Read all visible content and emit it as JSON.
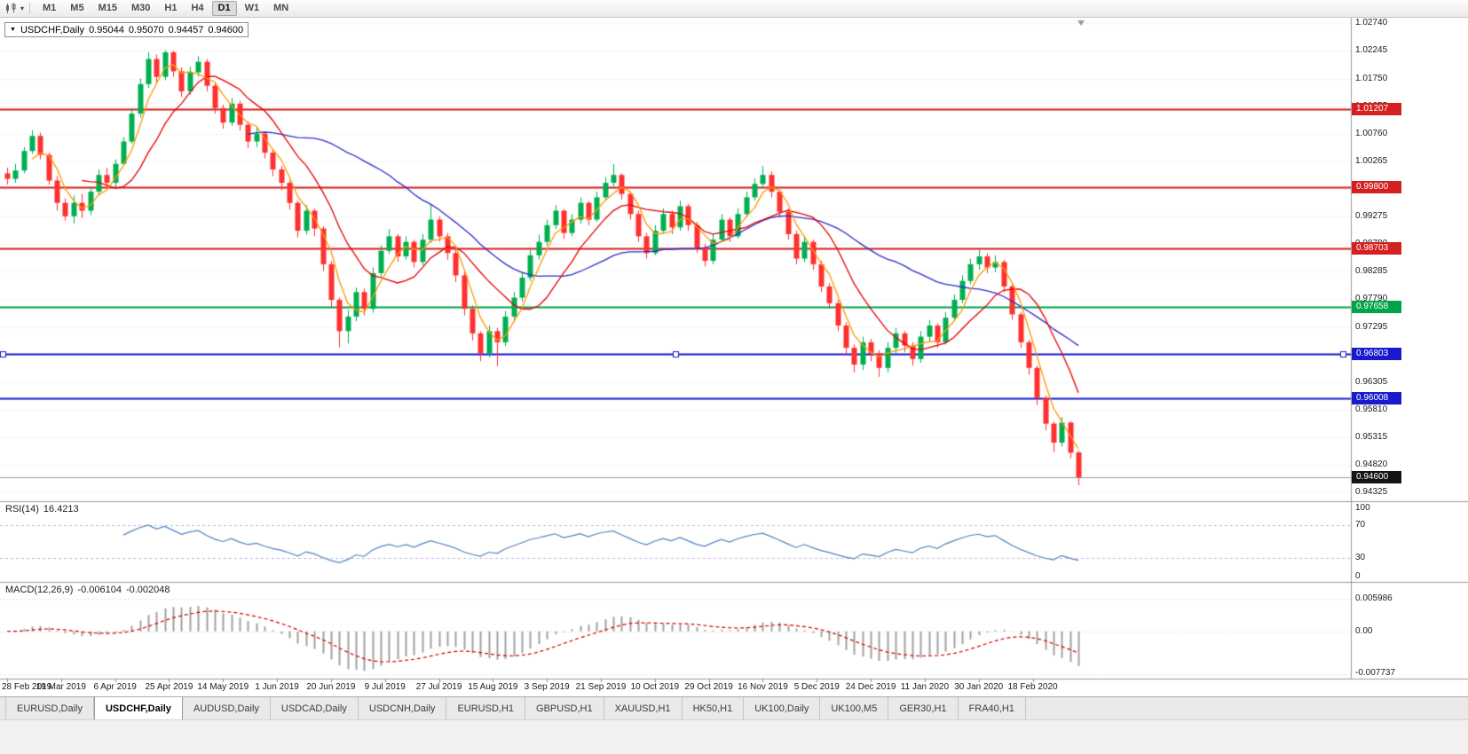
{
  "toolbar": {
    "timeframes": [
      "M1",
      "M5",
      "M15",
      "M30",
      "H1",
      "H4",
      "D1",
      "W1",
      "MN"
    ],
    "active_timeframe": "D1"
  },
  "chart_title": {
    "symbol_period": "USDCHF,Daily",
    "open": "0.95044",
    "high": "0.95070",
    "low": "0.94457",
    "close": "0.94600"
  },
  "price_axis": {
    "ticks": [
      "1.02740",
      "1.02245",
      "1.01750",
      "1.01255",
      "1.00760",
      "1.00265",
      "0.99770",
      "0.99275",
      "0.98780",
      "0.98285",
      "0.97790",
      "0.97295",
      "0.96800",
      "0.96305",
      "0.95810",
      "0.95315",
      "0.94820",
      "0.94325"
    ]
  },
  "levels": [
    {
      "price": 1.01207,
      "label": "1.01207",
      "color": "#d42020",
      "width": 2
    },
    {
      "price": 0.998,
      "label": "0.99800",
      "color": "#d42020",
      "width": 2
    },
    {
      "price": 0.98703,
      "label": "0.98703",
      "color": "#d42020",
      "width": 2
    },
    {
      "price": 0.97658,
      "label": "0.97658",
      "color": "#00a44a",
      "width": 2
    },
    {
      "price": 0.96803,
      "label": "0.96803",
      "color": "#1a1acc",
      "width": 2,
      "selected": true
    },
    {
      "price": 0.96008,
      "label": "0.96008",
      "color": "#1a1acc",
      "width": 2
    }
  ],
  "current_price": {
    "label": "0.94600",
    "price": 0.946,
    "badge_color": "#141414",
    "line_color": "#9a9a9a"
  },
  "style": {
    "up": "#00b050",
    "down": "#ff3030",
    "grid": "#e4e4e4",
    "panel_border": "#9a9a9a",
    "axis_text": "#1c1c1c"
  },
  "chart_data": {
    "type": "candlestick",
    "symbol": "USDCHF",
    "timeframe": "Daily",
    "y_range": [
      0.9417,
      1.0284
    ],
    "x_labels": [
      "28 Feb 2019",
      "19 Mar 2019",
      "6 Apr 2019",
      "25 Apr 2019",
      "14 May 2019",
      "1 Jun 2019",
      "20 Jun 2019",
      "9 Jul 2019",
      "27 Jul 2019",
      "15 Aug 2019",
      "3 Sep 2019",
      "21 Sep 2019",
      "10 Oct 2019",
      "29 Oct 2019",
      "16 Nov 2019",
      "5 Dec 2019",
      "24 Dec 2019",
      "11 Jan 2020",
      "30 Jan 2020",
      "18 Feb 2020"
    ],
    "ohlc": [
      [
        1.0005,
        1.0015,
        0.9985,
        0.9995
      ],
      [
        0.9995,
        1.0022,
        0.9988,
        1.001
      ],
      [
        1.001,
        1.0052,
        1.0005,
        1.0045
      ],
      [
        1.0045,
        1.0082,
        1.004,
        1.0072
      ],
      [
        1.0072,
        1.0078,
        1.003,
        1.0038
      ],
      [
        1.0038,
        1.0042,
        0.9985,
        0.9992
      ],
      [
        0.9992,
        1.0,
        0.9938,
        0.9952
      ],
      [
        0.9952,
        0.996,
        0.992,
        0.9928
      ],
      [
        0.9928,
        0.9965,
        0.9915,
        0.9952
      ],
      [
        0.9952,
        0.9968,
        0.9925,
        0.9938
      ],
      [
        0.9938,
        0.998,
        0.993,
        0.9972
      ],
      [
        0.9972,
        1.0012,
        0.9965,
        1.0002
      ],
      [
        1.0002,
        1.0015,
        0.9975,
        0.9988
      ],
      [
        0.9988,
        1.003,
        0.998,
        1.0022
      ],
      [
        1.0022,
        1.007,
        1.0018,
        1.0062
      ],
      [
        1.0062,
        1.0122,
        1.0058,
        1.0112
      ],
      [
        1.0112,
        1.0175,
        1.0105,
        1.0165
      ],
      [
        1.0165,
        1.0222,
        1.0158,
        1.021
      ],
      [
        1.021,
        1.0218,
        1.0165,
        1.0178
      ],
      [
        1.0178,
        1.0226,
        1.0172,
        1.0222
      ],
      [
        1.0222,
        1.0225,
        1.0178,
        1.0188
      ],
      [
        1.0188,
        1.0195,
        1.0142,
        1.0152
      ],
      [
        1.0152,
        1.0196,
        1.0146,
        1.0186
      ],
      [
        1.0186,
        1.0215,
        1.0178,
        1.0205
      ],
      [
        1.0205,
        1.021,
        1.0152,
        1.0162
      ],
      [
        1.0162,
        1.0168,
        1.0112,
        1.0122
      ],
      [
        1.0122,
        1.0128,
        1.0085,
        1.0096
      ],
      [
        1.0096,
        1.014,
        1.009,
        1.013
      ],
      [
        1.013,
        1.0135,
        1.0082,
        1.0092
      ],
      [
        1.0092,
        1.0098,
        1.005,
        1.0062
      ],
      [
        1.0062,
        1.0088,
        1.0052,
        1.0076
      ],
      [
        1.0076,
        1.008,
        1.0032,
        1.0042
      ],
      [
        1.0042,
        1.0048,
        1.0,
        1.0012
      ],
      [
        1.0012,
        1.0018,
        0.9975,
        0.9988
      ],
      [
        0.9988,
        0.9992,
        0.994,
        0.9952
      ],
      [
        0.9952,
        0.9955,
        0.989,
        0.9902
      ],
      [
        0.9902,
        0.9948,
        0.9895,
        0.9938
      ],
      [
        0.9938,
        0.9942,
        0.9892,
        0.9906
      ],
      [
        0.9906,
        0.991,
        0.983,
        0.9842
      ],
      [
        0.9842,
        0.9848,
        0.9765,
        0.9778
      ],
      [
        0.9778,
        0.9782,
        0.9693,
        0.9722
      ],
      [
        0.9722,
        0.976,
        0.97,
        0.9748
      ],
      [
        0.9748,
        0.98,
        0.974,
        0.9792
      ],
      [
        0.9792,
        0.9798,
        0.975,
        0.9762
      ],
      [
        0.9762,
        0.9836,
        0.9755,
        0.9826
      ],
      [
        0.9826,
        0.9876,
        0.982,
        0.9866
      ],
      [
        0.9866,
        0.9905,
        0.986,
        0.9892
      ],
      [
        0.9892,
        0.9896,
        0.9846,
        0.9856
      ],
      [
        0.9856,
        0.9892,
        0.985,
        0.9882
      ],
      [
        0.9882,
        0.9886,
        0.9836,
        0.9846
      ],
      [
        0.9846,
        0.9896,
        0.984,
        0.9886
      ],
      [
        0.9886,
        0.995,
        0.988,
        0.9922
      ],
      [
        0.9922,
        0.9928,
        0.9882,
        0.9892
      ],
      [
        0.9892,
        0.9898,
        0.985,
        0.9862
      ],
      [
        0.9862,
        0.9868,
        0.981,
        0.9822
      ],
      [
        0.9822,
        0.9828,
        0.975,
        0.9762
      ],
      [
        0.9762,
        0.9768,
        0.9705,
        0.9718
      ],
      [
        0.9718,
        0.9722,
        0.9668,
        0.9682
      ],
      [
        0.9682,
        0.9732,
        0.9675,
        0.9722
      ],
      [
        0.9722,
        0.9728,
        0.9659,
        0.9702
      ],
      [
        0.9702,
        0.9758,
        0.9695,
        0.9748
      ],
      [
        0.9748,
        0.9792,
        0.974,
        0.9782
      ],
      [
        0.9782,
        0.9828,
        0.9775,
        0.9818
      ],
      [
        0.9818,
        0.9868,
        0.9812,
        0.9858
      ],
      [
        0.9858,
        0.9895,
        0.985,
        0.9882
      ],
      [
        0.9882,
        0.9922,
        0.9875,
        0.9912
      ],
      [
        0.9912,
        0.9948,
        0.9905,
        0.9938
      ],
      [
        0.9938,
        0.994,
        0.9888,
        0.9898
      ],
      [
        0.9898,
        0.9932,
        0.9892,
        0.9922
      ],
      [
        0.9922,
        0.9962,
        0.9915,
        0.9952
      ],
      [
        0.9952,
        0.9955,
        0.9912,
        0.9922
      ],
      [
        0.9922,
        0.9972,
        0.9918,
        0.9962
      ],
      [
        0.9962,
        0.9998,
        0.9958,
        0.9988
      ],
      [
        0.9988,
        1.0022,
        0.9982,
        1.0002
      ],
      [
        1.0002,
        1.0005,
        0.9958,
        0.9968
      ],
      [
        0.9968,
        0.9972,
        0.9922,
        0.9932
      ],
      [
        0.9932,
        0.9938,
        0.9882,
        0.9892
      ],
      [
        0.9892,
        0.9898,
        0.9852,
        0.9862
      ],
      [
        0.9862,
        0.9912,
        0.9858,
        0.9902
      ],
      [
        0.9902,
        0.9942,
        0.9898,
        0.9932
      ],
      [
        0.9932,
        0.9938,
        0.9896,
        0.9908
      ],
      [
        0.9908,
        0.9956,
        0.9902,
        0.9946
      ],
      [
        0.9946,
        0.995,
        0.9902,
        0.9912
      ],
      [
        0.9912,
        0.9918,
        0.9862,
        0.9872
      ],
      [
        0.9872,
        0.9878,
        0.9838,
        0.9848
      ],
      [
        0.9848,
        0.9896,
        0.9842,
        0.9886
      ],
      [
        0.9886,
        0.9932,
        0.9882,
        0.9922
      ],
      [
        0.9922,
        0.9926,
        0.9882,
        0.9892
      ],
      [
        0.9892,
        0.9942,
        0.9888,
        0.9932
      ],
      [
        0.9932,
        0.9972,
        0.9926,
        0.9962
      ],
      [
        0.9962,
        0.9996,
        0.9956,
        0.9986
      ],
      [
        0.9986,
        1.0018,
        0.9982,
        1.0002
      ],
      [
        1.0002,
        1.0008,
        0.9962,
        0.9972
      ],
      [
        0.9972,
        0.9976,
        0.9926,
        0.9936
      ],
      [
        0.9936,
        0.9942,
        0.9886,
        0.9896
      ],
      [
        0.9896,
        0.9902,
        0.9842,
        0.9852
      ],
      [
        0.9852,
        0.9892,
        0.9846,
        0.9882
      ],
      [
        0.9882,
        0.9886,
        0.9832,
        0.9842
      ],
      [
        0.9842,
        0.9848,
        0.9792,
        0.9802
      ],
      [
        0.9802,
        0.9808,
        0.9762,
        0.9772
      ],
      [
        0.9772,
        0.9778,
        0.9722,
        0.9732
      ],
      [
        0.9732,
        0.9738,
        0.968,
        0.9692
      ],
      [
        0.9692,
        0.9698,
        0.9648,
        0.9662
      ],
      [
        0.9662,
        0.9712,
        0.9652,
        0.9702
      ],
      [
        0.9702,
        0.9708,
        0.9668,
        0.9682
      ],
      [
        0.9682,
        0.9688,
        0.964,
        0.9656
      ],
      [
        0.9656,
        0.9702,
        0.9648,
        0.9692
      ],
      [
        0.9692,
        0.9728,
        0.9682,
        0.9718
      ],
      [
        0.9718,
        0.9722,
        0.9684,
        0.9696
      ],
      [
        0.9696,
        0.9702,
        0.966,
        0.9672
      ],
      [
        0.9672,
        0.9722,
        0.9665,
        0.9712
      ],
      [
        0.9712,
        0.9742,
        0.9702,
        0.9732
      ],
      [
        0.9732,
        0.9736,
        0.9692,
        0.9702
      ],
      [
        0.9702,
        0.9756,
        0.9698,
        0.9746
      ],
      [
        0.9746,
        0.9788,
        0.974,
        0.9778
      ],
      [
        0.9778,
        0.9822,
        0.9772,
        0.9812
      ],
      [
        0.9812,
        0.9852,
        0.9806,
        0.9842
      ],
      [
        0.9842,
        0.9868,
        0.9832,
        0.9856
      ],
      [
        0.9856,
        0.9862,
        0.9826,
        0.9836
      ],
      [
        0.9836,
        0.9858,
        0.9828,
        0.9846
      ],
      [
        0.9846,
        0.985,
        0.9792,
        0.9802
      ],
      [
        0.9802,
        0.9806,
        0.9742,
        0.9752
      ],
      [
        0.9752,
        0.9756,
        0.9692,
        0.9702
      ],
      [
        0.9702,
        0.9706,
        0.9644,
        0.9656
      ],
      [
        0.9656,
        0.966,
        0.959,
        0.9602
      ],
      [
        0.9602,
        0.9606,
        0.9544,
        0.9556
      ],
      [
        0.9556,
        0.956,
        0.9505,
        0.9522
      ],
      [
        0.9522,
        0.9568,
        0.9515,
        0.9558
      ],
      [
        0.9558,
        0.956,
        0.9494,
        0.9504
      ],
      [
        0.95044,
        0.9507,
        0.94457,
        0.946
      ]
    ],
    "moving_averages": [
      {
        "name": "slow",
        "period": 30,
        "color": "#2d2dcf"
      },
      {
        "name": "mid",
        "period": 10,
        "color": "#e60000"
      },
      {
        "name": "fast",
        "period": 4,
        "color": "#ff9800"
      }
    ],
    "indicators": [
      {
        "name": "RSI",
        "label": "RSI(14)",
        "value": "16.4213",
        "axis": [
          "100",
          "70",
          "30",
          "0"
        ],
        "guides": [
          70,
          30
        ],
        "color": "#4f86c0"
      },
      {
        "name": "MACD",
        "label": "MACD(12,26,9)",
        "value": "-0.006104",
        "value2": "-0.002048",
        "axis": [
          "0.005986",
          "0.00",
          "-0.007737"
        ],
        "hist_color": "#a0a0a0",
        "signal_color": "#d40000"
      }
    ]
  },
  "tabs": {
    "active": "USDCHF,Daily",
    "items": [
      "EURUSD,Daily",
      "USDCHF,Daily",
      "AUDUSD,Daily",
      "USDCAD,Daily",
      "USDCNH,Daily",
      "EURUSD,H1",
      "GBPUSD,H1",
      "XAUUSD,H1",
      "HK50,H1",
      "UK100,Daily",
      "UK100,M5",
      "GER30,H1",
      "FRA40,H1"
    ]
  }
}
